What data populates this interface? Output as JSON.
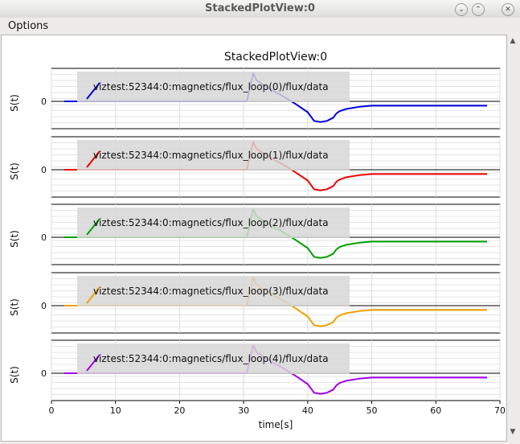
{
  "window": {
    "title": "StackedPlotView:0"
  },
  "menu": {
    "options_label": "Options"
  },
  "plot": {
    "title": "StackedPlotView:0",
    "xlabel": "time[s]",
    "xlim": [
      0,
      70
    ],
    "xticks": [
      "0",
      "10",
      "20",
      "30",
      "40",
      "50",
      "60",
      "70"
    ],
    "ylabel": "S(t)",
    "ytick": "0"
  },
  "chart_data": {
    "type": "line",
    "title": "StackedPlotView:0",
    "xlabel": "time[s]",
    "ylabel": "S(t)",
    "xlim": [
      0,
      70
    ],
    "ylim": [
      -1,
      1.2
    ],
    "grid": true,
    "legend_placement": "center-left",
    "x": [
      2,
      7,
      20,
      30.5,
      31,
      31.5,
      32,
      34,
      36,
      38,
      40,
      41,
      42,
      43,
      44,
      44.5,
      45,
      46,
      48,
      50,
      60,
      68
    ],
    "series": [
      {
        "name": "viztest:52344:0:magnetics/flux_loop(0)/flux/data",
        "color": "#0000dd",
        "values": [
          0,
          0,
          0,
          0,
          0.5,
          1,
          0.75,
          0.45,
          0.2,
          -0.1,
          -0.5,
          -0.9,
          -0.95,
          -0.9,
          -0.75,
          -0.55,
          -0.45,
          -0.35,
          -0.25,
          -0.2,
          -0.2,
          -0.2
        ]
      },
      {
        "name": "viztest:52344:0:magnetics/flux_loop(1)/flux/data",
        "color": "#ee0000",
        "values": [
          0,
          0,
          0,
          0,
          0.5,
          1,
          0.75,
          0.45,
          0.2,
          -0.1,
          -0.5,
          -0.9,
          -0.95,
          -0.9,
          -0.75,
          -0.55,
          -0.45,
          -0.35,
          -0.25,
          -0.2,
          -0.2,
          -0.2
        ]
      },
      {
        "name": "viztest:52344:0:magnetics/flux_loop(2)/flux/data",
        "color": "#00a000",
        "values": [
          0,
          0,
          0,
          0,
          0.5,
          1,
          0.75,
          0.45,
          0.2,
          -0.1,
          -0.5,
          -0.9,
          -0.95,
          -0.9,
          -0.75,
          -0.55,
          -0.45,
          -0.35,
          -0.25,
          -0.2,
          -0.2,
          -0.2
        ]
      },
      {
        "name": "viztest:52344:0:magnetics/flux_loop(3)/flux/data",
        "color": "#f0a000",
        "values": [
          0,
          0,
          0,
          0,
          0.5,
          1,
          0.75,
          0.45,
          0.2,
          -0.1,
          -0.5,
          -0.9,
          -0.95,
          -0.9,
          -0.75,
          -0.55,
          -0.45,
          -0.35,
          -0.25,
          -0.2,
          -0.2,
          -0.2
        ]
      },
      {
        "name": "viztest:52344:0:magnetics/flux_loop(4)/flux/data",
        "color": "#a000f0",
        "values": [
          0,
          0,
          0,
          0,
          0.5,
          1,
          0.75,
          0.45,
          0.2,
          -0.1,
          -0.5,
          -0.9,
          -0.95,
          -0.9,
          -0.75,
          -0.55,
          -0.45,
          -0.35,
          -0.25,
          -0.2,
          -0.2,
          -0.2
        ]
      }
    ]
  }
}
